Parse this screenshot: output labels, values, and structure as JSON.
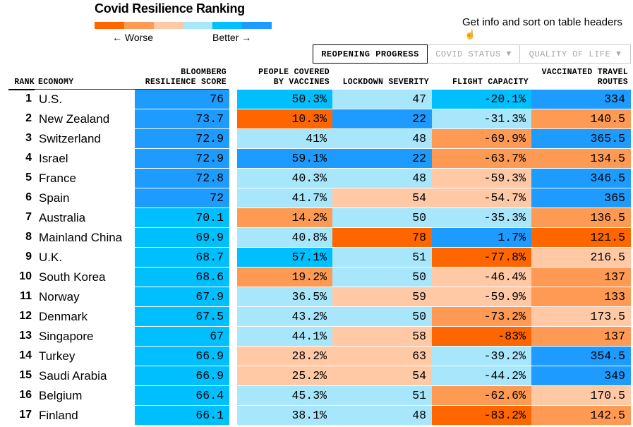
{
  "title": "Covid Resilience Ranking",
  "legend": {
    "colors": [
      "#ff6600",
      "#ff9a54",
      "#ffc9a6",
      "#a8e6fb",
      "#00bfff",
      "#1e9bff"
    ],
    "worse_label": "← Worse",
    "better_label": "Better →"
  },
  "hint": {
    "text": "Get info and sort on table headers",
    "icon": "hand-pointer-icon"
  },
  "tabs": [
    {
      "label": "REOPENING PROGRESS",
      "active": true
    },
    {
      "label": "COVID STATUS",
      "active": false
    },
    {
      "label": "QUALITY OF LIFE",
      "active": false
    }
  ],
  "tab_caret": "▼",
  "headers": {
    "rank": "RANK",
    "economy": "ECONOMY",
    "score_1": "BLOOMBERG",
    "score_2": "RESILIENCE SCORE",
    "vacc_1": "PEOPLE COVERED",
    "vacc_2": "BY VACCINES",
    "lockdown": "LOCKDOWN SEVERITY",
    "flight": "FLIGHT CAPACITY",
    "routes_1": "VACCINATED TRAVEL",
    "routes_2": "ROUTES"
  },
  "rows": [
    {
      "rank": "1",
      "economy": "U.S.",
      "score": "76",
      "vaccines": "50.3%",
      "lockdown": "47",
      "flight": "-20.1%",
      "routes": "334",
      "colors": [
        "#1e9bff",
        "#00bfff",
        "#a8e6fb",
        "#00bfff",
        "#1e9bff"
      ]
    },
    {
      "rank": "2",
      "economy": "New Zealand",
      "score": "73.7",
      "vaccines": "10.3%",
      "lockdown": "22",
      "flight": "-31.3%",
      "routes": "140.5",
      "colors": [
        "#1e9bff",
        "#ff6600",
        "#1e9bff",
        "#a8e6fb",
        "#ff9a54"
      ]
    },
    {
      "rank": "3",
      "economy": "Switzerland",
      "score": "72.9",
      "vaccines": "41%",
      "lockdown": "48",
      "flight": "-69.9%",
      "routes": "365.5",
      "colors": [
        "#1e9bff",
        "#a8e6fb",
        "#a8e6fb",
        "#ff9a54",
        "#1e9bff"
      ]
    },
    {
      "rank": "4",
      "economy": "Israel",
      "score": "72.9",
      "vaccines": "59.1%",
      "lockdown": "22",
      "flight": "-63.7%",
      "routes": "134.5",
      "colors": [
        "#1e9bff",
        "#1e9bff",
        "#1e9bff",
        "#ff9a54",
        "#ff9a54"
      ]
    },
    {
      "rank": "5",
      "economy": "France",
      "score": "72.8",
      "vaccines": "40.3%",
      "lockdown": "48",
      "flight": "-59.3%",
      "routes": "346.5",
      "colors": [
        "#1e9bff",
        "#a8e6fb",
        "#a8e6fb",
        "#ffc9a6",
        "#1e9bff"
      ]
    },
    {
      "rank": "6",
      "economy": "Spain",
      "score": "72",
      "vaccines": "41.7%",
      "lockdown": "54",
      "flight": "-54.7%",
      "routes": "365",
      "colors": [
        "#1e9bff",
        "#a8e6fb",
        "#ffc9a6",
        "#ffc9a6",
        "#1e9bff"
      ]
    },
    {
      "rank": "7",
      "economy": "Australia",
      "score": "70.1",
      "vaccines": "14.2%",
      "lockdown": "50",
      "flight": "-35.3%",
      "routes": "136.5",
      "colors": [
        "#00bfff",
        "#ff9a54",
        "#a8e6fb",
        "#a8e6fb",
        "#ff9a54"
      ]
    },
    {
      "rank": "8",
      "economy": "Mainland China",
      "score": "69.9",
      "vaccines": "40.8%",
      "lockdown": "78",
      "flight": "1.7%",
      "routes": "121.5",
      "colors": [
        "#00bfff",
        "#a8e6fb",
        "#ff6600",
        "#1e9bff",
        "#ff6600"
      ]
    },
    {
      "rank": "9",
      "economy": "U.K.",
      "score": "68.7",
      "vaccines": "57.1%",
      "lockdown": "51",
      "flight": "-77.8%",
      "routes": "216.5",
      "colors": [
        "#00bfff",
        "#00bfff",
        "#a8e6fb",
        "#ff6600",
        "#ffc9a6"
      ]
    },
    {
      "rank": "10",
      "economy": "South Korea",
      "score": "68.6",
      "vaccines": "19.2%",
      "lockdown": "50",
      "flight": "-46.4%",
      "routes": "137",
      "colors": [
        "#00bfff",
        "#ff9a54",
        "#a8e6fb",
        "#ffc9a6",
        "#ff9a54"
      ]
    },
    {
      "rank": "11",
      "economy": "Norway",
      "score": "67.9",
      "vaccines": "36.5%",
      "lockdown": "59",
      "flight": "-59.9%",
      "routes": "133",
      "colors": [
        "#00bfff",
        "#a8e6fb",
        "#ffc9a6",
        "#ffc9a6",
        "#ff9a54"
      ]
    },
    {
      "rank": "12",
      "economy": "Denmark",
      "score": "67.5",
      "vaccines": "43.2%",
      "lockdown": "50",
      "flight": "-73.2%",
      "routes": "173.5",
      "colors": [
        "#00bfff",
        "#a8e6fb",
        "#a8e6fb",
        "#ff9a54",
        "#ffc9a6"
      ]
    },
    {
      "rank": "13",
      "economy": "Singapore",
      "score": "67",
      "vaccines": "44.1%",
      "lockdown": "58",
      "flight": "-83%",
      "routes": "137",
      "colors": [
        "#00bfff",
        "#a8e6fb",
        "#ffc9a6",
        "#ff6600",
        "#ff9a54"
      ]
    },
    {
      "rank": "14",
      "economy": "Turkey",
      "score": "66.9",
      "vaccines": "28.2%",
      "lockdown": "63",
      "flight": "-39.2%",
      "routes": "354.5",
      "colors": [
        "#00bfff",
        "#ffc9a6",
        "#ffc9a6",
        "#a8e6fb",
        "#1e9bff"
      ]
    },
    {
      "rank": "15",
      "economy": "Saudi Arabia",
      "score": "66.9",
      "vaccines": "25.2%",
      "lockdown": "54",
      "flight": "-44.2%",
      "routes": "349",
      "colors": [
        "#00bfff",
        "#ffc9a6",
        "#ffc9a6",
        "#a8e6fb",
        "#1e9bff"
      ]
    },
    {
      "rank": "16",
      "economy": "Belgium",
      "score": "66.4",
      "vaccines": "45.3%",
      "lockdown": "51",
      "flight": "-62.6%",
      "routes": "170.5",
      "colors": [
        "#00bfff",
        "#a8e6fb",
        "#a8e6fb",
        "#ff9a54",
        "#ffc9a6"
      ]
    },
    {
      "rank": "17",
      "economy": "Finland",
      "score": "66.1",
      "vaccines": "38.1%",
      "lockdown": "48",
      "flight": "-83.2%",
      "routes": "142.5",
      "colors": [
        "#00bfff",
        "#a8e6fb",
        "#a8e6fb",
        "#ff6600",
        "#ff9a54"
      ]
    }
  ]
}
